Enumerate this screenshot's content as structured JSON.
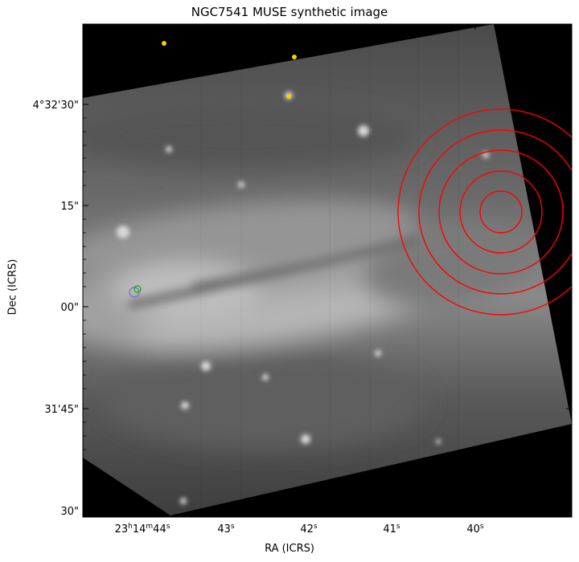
{
  "figure": {
    "title": "NGC7541 MUSE synthetic image",
    "xlabel": "RA (ICRS)",
    "ylabel": "Dec (ICRS)"
  },
  "axes": {
    "x_ticks": [
      {
        "label_main": "23",
        "sup1": "h",
        "mid": "14",
        "sup2": "m",
        "sec": "44",
        "sup3": "s"
      },
      {
        "label_main": "43",
        "sup3": "s"
      },
      {
        "label_main": "42",
        "sup3": "s"
      },
      {
        "label_main": "41",
        "sup3": "s"
      },
      {
        "label_main": "40",
        "sup3": "s"
      }
    ],
    "y_ticks": [
      "4°32'30\"",
      "15\"",
      "00\"",
      "31'45\"",
      "30\""
    ]
  },
  "overlays": {
    "circle_color": "#ff0000",
    "marker_yellow": "#ffcc00",
    "marker_green": "#22aa22",
    "marker_blue": "#7777cc"
  }
}
